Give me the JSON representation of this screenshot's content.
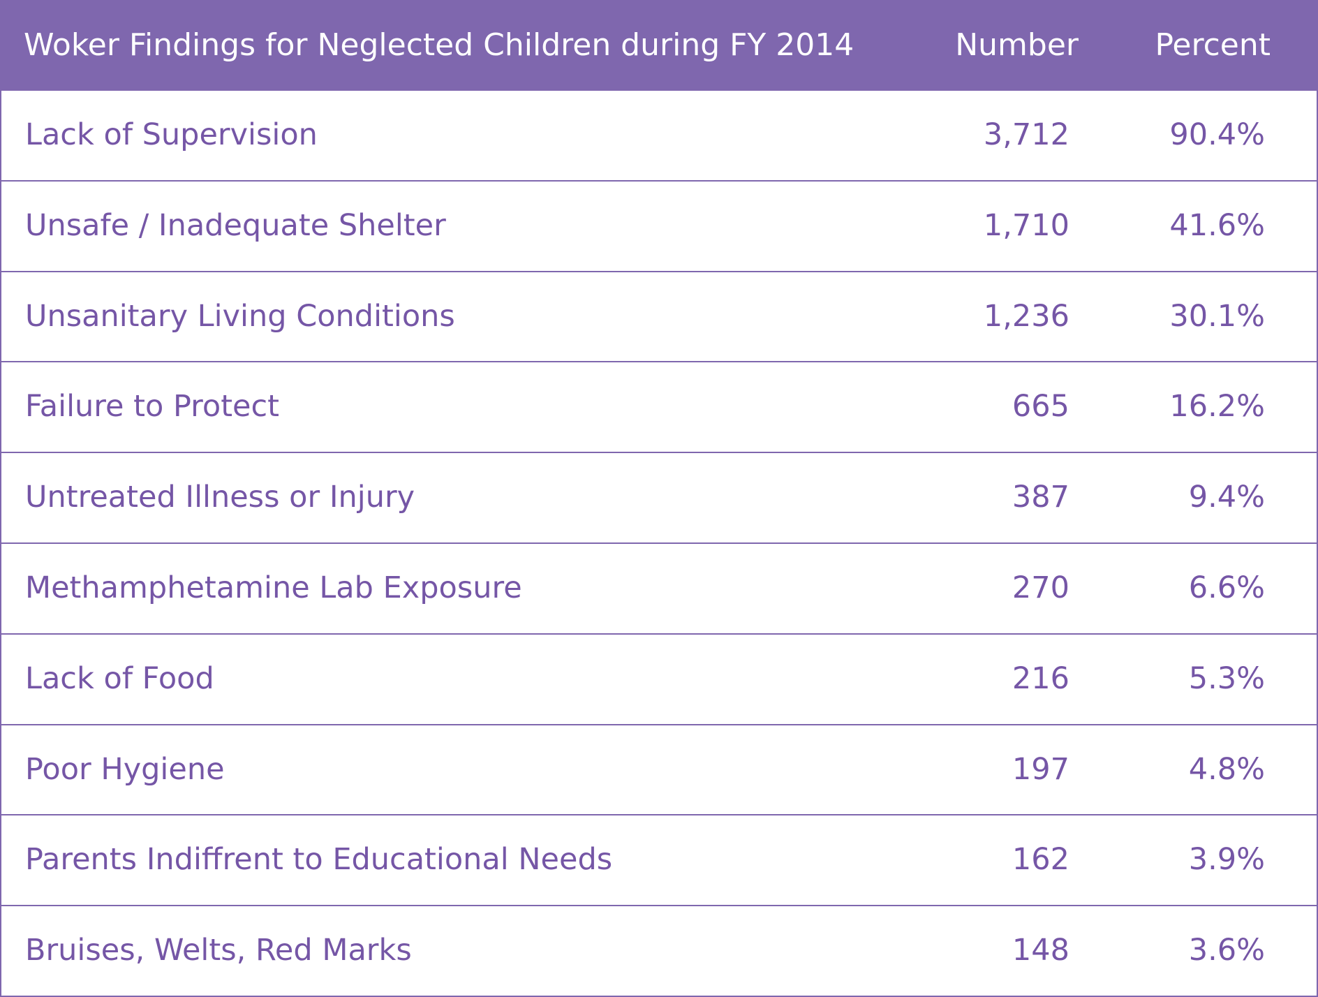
{
  "chart_data": {
    "type": "table",
    "columns": [
      "Woker Findings for Neglected Children during FY 2014",
      "Number",
      "Percent"
    ],
    "rows": [
      {
        "label": "Lack of Supervision",
        "number": "3,712",
        "percent": "90.4%"
      },
      {
        "label": "Unsafe / Inadequate Shelter",
        "number": "1,710",
        "percent": "41.6%"
      },
      {
        "label": "Unsanitary Living Conditions",
        "number": "1,236",
        "percent": "30.1%"
      },
      {
        "label": "Failure to Protect",
        "number": "665",
        "percent": "16.2%"
      },
      {
        "label": "Untreated Illness or Injury",
        "number": "387",
        "percent": "9.4%"
      },
      {
        "label": "Methamphetamine Lab Exposure",
        "number": "270",
        "percent": "6.6%"
      },
      {
        "label": "Lack of Food",
        "number": "216",
        "percent": "5.3%"
      },
      {
        "label": "Poor Hygiene",
        "number": "197",
        "percent": "4.8%"
      },
      {
        "label": "Parents Indiffrent to Educational Needs",
        "number": "162",
        "percent": "3.9%"
      },
      {
        "label": "Bruises, Welts, Red Marks",
        "number": "148",
        "percent": "3.6%"
      }
    ],
    "colors": {
      "header_bg": "#7f67ae",
      "header_text": "#ffffff",
      "body_text": "#7556a6",
      "border": "#7f67ae"
    }
  }
}
